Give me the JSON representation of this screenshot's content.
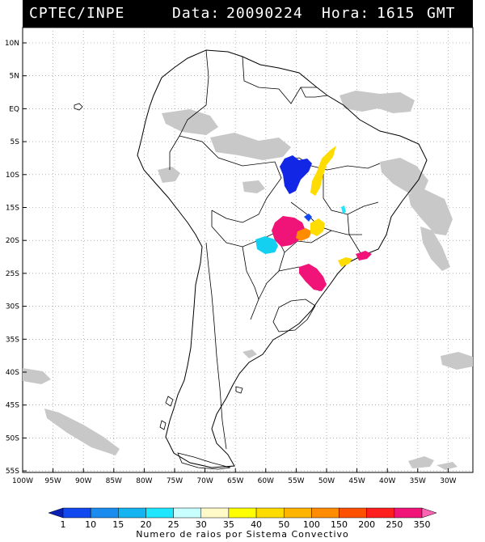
{
  "header": {
    "source": "CPTEC/INPE",
    "date_label": "Data:",
    "date_value": "20090224",
    "time_label": "Hora:",
    "time_value": "1615",
    "time_zone": "GMT"
  },
  "map": {
    "lat_labels": [
      "10N",
      "5N",
      "EQ",
      "5S",
      "10S",
      "15S",
      "20S",
      "25S",
      "30S",
      "35S",
      "40S",
      "45S",
      "50S",
      "55S"
    ],
    "lon_labels": [
      "100W",
      "95W",
      "90W",
      "85W",
      "80W",
      "75W",
      "70W",
      "65W",
      "60W",
      "55W",
      "50W",
      "45W",
      "40W",
      "35W",
      "30W"
    ]
  },
  "legend": {
    "values": [
      "1",
      "10",
      "15",
      "20",
      "25",
      "30",
      "35",
      "40",
      "50",
      "100",
      "150",
      "200",
      "250",
      "350"
    ],
    "colors": [
      "#0a1fb4",
      "#1248f0",
      "#1a8cf0",
      "#14b4f0",
      "#1ee6ff",
      "#c8ffff",
      "#fffac8",
      "#ffff00",
      "#ffdc00",
      "#ffb400",
      "#ff8c00",
      "#ff5000",
      "#ff1e1e",
      "#f01478",
      "#ff64b4"
    ],
    "caption": "Numero de raios por Sistema Convectivo"
  }
}
